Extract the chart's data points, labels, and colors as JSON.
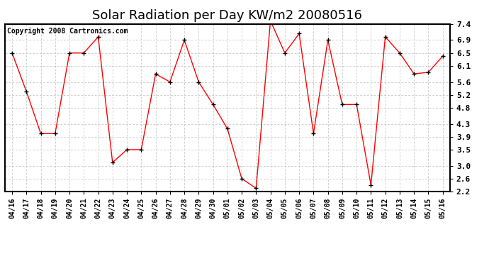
{
  "title": "Solar Radiation per Day KW/m2 20080516",
  "copyright": "Copyright 2008 Cartronics.com",
  "dates": [
    "04/16",
    "04/17",
    "04/18",
    "04/19",
    "04/20",
    "04/21",
    "04/22",
    "04/23",
    "04/24",
    "04/25",
    "04/26",
    "04/27",
    "04/28",
    "04/29",
    "04/30",
    "05/01",
    "05/02",
    "05/03",
    "05/04",
    "05/05",
    "05/06",
    "05/07",
    "05/08",
    "05/09",
    "05/10",
    "05/11",
    "05/12",
    "05/13",
    "05/14",
    "05/15",
    "05/16"
  ],
  "values": [
    6.5,
    5.3,
    4.0,
    4.0,
    6.5,
    6.5,
    7.0,
    3.1,
    3.5,
    3.5,
    5.85,
    5.6,
    6.9,
    5.6,
    4.9,
    4.15,
    2.6,
    2.3,
    7.5,
    6.5,
    7.1,
    4.0,
    6.9,
    4.9,
    4.9,
    2.4,
    7.0,
    6.5,
    5.85,
    5.9,
    6.4
  ],
  "ylim": [
    2.2,
    7.4
  ],
  "yticks": [
    2.2,
    2.6,
    3.0,
    3.5,
    3.9,
    4.3,
    4.8,
    5.2,
    5.6,
    6.1,
    6.5,
    6.9,
    7.4
  ],
  "line_color": "red",
  "marker": "+",
  "marker_color": "black",
  "marker_size": 5,
  "marker_linewidth": 1.0,
  "bg_color": "#ffffff",
  "grid_color": "#bbbbbb",
  "title_fontsize": 13,
  "axis_fontsize": 7,
  "copyright_fontsize": 7
}
